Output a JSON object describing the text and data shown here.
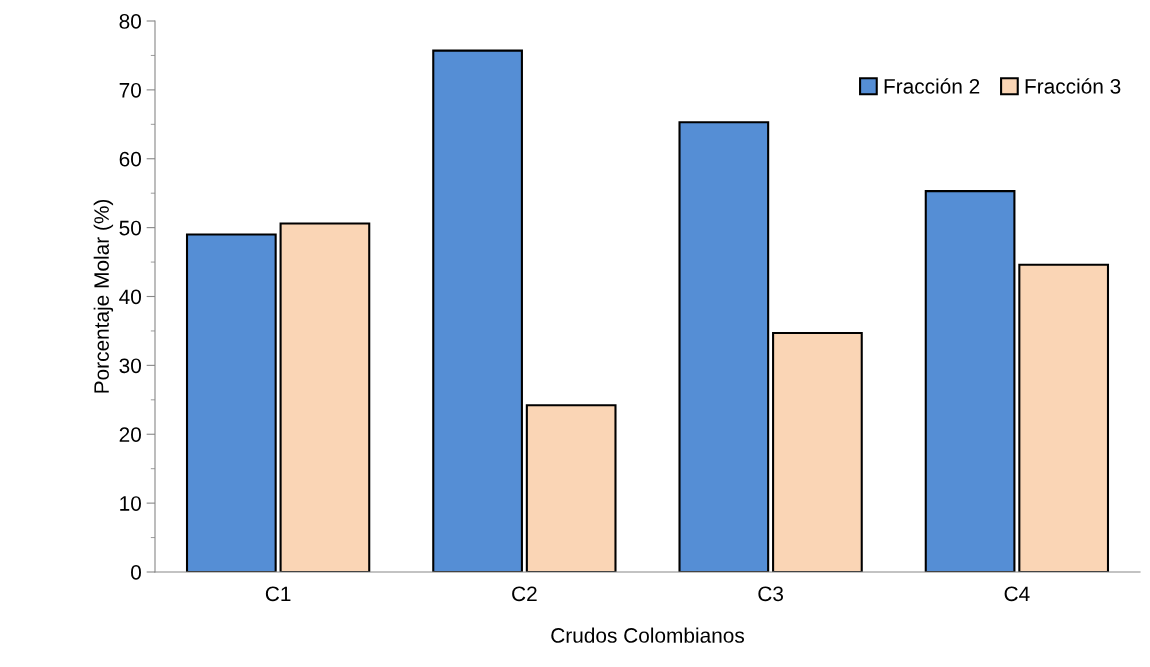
{
  "chart_data": {
    "type": "bar",
    "xlabel": "Crudos Colombianos",
    "ylabel": "Porcentaje Molar (%)",
    "categories": [
      "C1",
      "C2",
      "C3",
      "C4"
    ],
    "series": [
      {
        "name": "Fracción 2",
        "color": "#558ed5",
        "values": [
          49.0,
          75.7,
          65.3,
          55.3
        ]
      },
      {
        "name": "Fracción 3",
        "color": "#fad5b5",
        "values": [
          50.6,
          24.2,
          34.7,
          44.6
        ]
      }
    ],
    "ylim": [
      0,
      80
    ],
    "yticks": [
      0,
      10,
      20,
      30,
      40,
      50,
      60,
      70,
      80
    ],
    "grid": false,
    "legend": "top right"
  }
}
